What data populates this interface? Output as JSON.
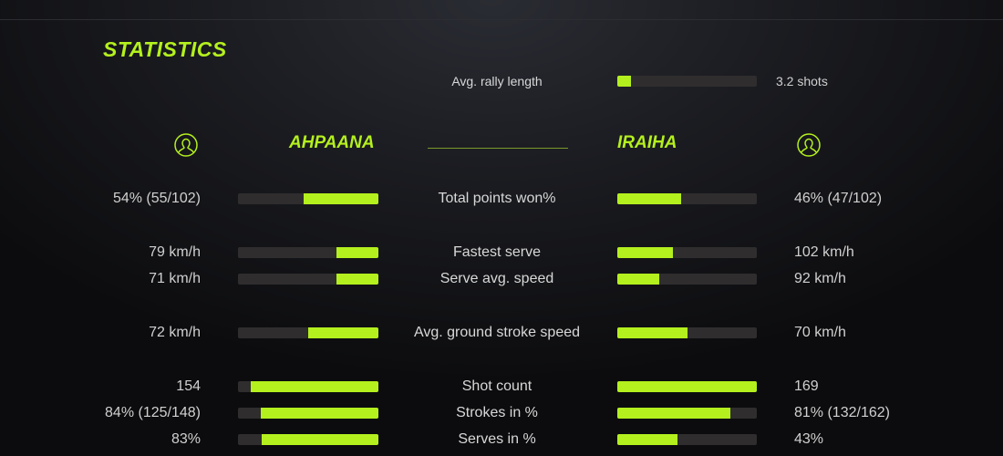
{
  "title": "STATISTICS",
  "accent": "#b4f01e",
  "rally": {
    "label": "Avg. rally length",
    "value": "3.2 shots",
    "fill": 0.1
  },
  "players": {
    "left": {
      "name": "AHPAANA",
      "icon": "user-circle-icon"
    },
    "right": {
      "name": "IRAIHA",
      "icon": "user-circle-icon"
    }
  },
  "stats": [
    {
      "label": "Total points won%",
      "left": "54% (55/102)",
      "right": "46% (47/102)",
      "left_fill": 0.53,
      "right_fill": 0.46
    },
    {
      "label": "Fastest serve",
      "left": "79 km/h",
      "right": "102 km/h",
      "left_fill": 0.3,
      "right_fill": 0.4
    },
    {
      "label": "Serve avg. speed",
      "left": "71 km/h",
      "right": "92 km/h",
      "left_fill": 0.3,
      "right_fill": 0.3
    },
    {
      "label": "Avg. ground stroke speed",
      "left": "72 km/h",
      "right": "70 km/h",
      "left_fill": 0.5,
      "right_fill": 0.5
    },
    {
      "label": "Shot count",
      "left": "154",
      "right": "169",
      "left_fill": 0.91,
      "right_fill": 1.0
    },
    {
      "label": "Strokes in %",
      "left": "84% (125/148)",
      "right": "81% (132/162)",
      "left_fill": 0.84,
      "right_fill": 0.81
    },
    {
      "label": "Serves in %",
      "left": "83%",
      "right": "43%",
      "left_fill": 0.83,
      "right_fill": 0.43
    }
  ]
}
